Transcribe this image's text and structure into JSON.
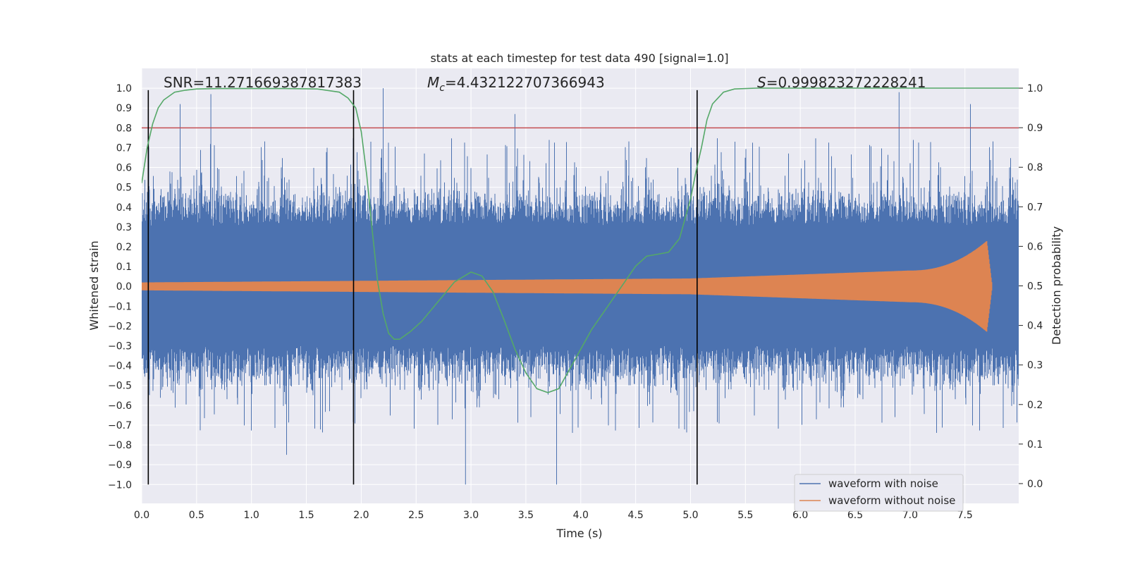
{
  "chart_data": {
    "type": "line",
    "title": "stats at each timestep for test data 490 [signal=1.0]",
    "xlabel": "Time (s)",
    "ylabel_left": "Whitened strain",
    "ylabel_right": "Detection probability",
    "xlim": [
      0.0,
      7.99
    ],
    "ylim_left": [
      -1.095,
      1.1
    ],
    "ylim_right": [
      -0.05,
      1.05
    ],
    "x_ticks": [
      "0.0",
      "0.5",
      "1.0",
      "1.5",
      "2.0",
      "2.5",
      "3.0",
      "3.5",
      "4.0",
      "4.5",
      "5.0",
      "5.5",
      "6.0",
      "6.5",
      "7.0",
      "7.5"
    ],
    "y_ticks_left": [
      "1.0",
      "0.9",
      "0.8",
      "0.7",
      "0.6",
      "0.5",
      "0.4",
      "0.3",
      "0.2",
      "0.1",
      "0.0",
      "−0.1",
      "−0.2",
      "−0.3",
      "−0.4",
      "−0.5",
      "−0.6",
      "−0.7",
      "−0.8",
      "−0.9",
      "−1.0"
    ],
    "y_ticks_right": [
      "1.0",
      "0.9",
      "0.8",
      "0.7",
      "0.6",
      "0.5",
      "0.4",
      "0.3",
      "0.2",
      "0.1",
      "0.0"
    ],
    "grid": true,
    "annotations": {
      "snr": "SNR=11.271669387817383",
      "mc_symbol": "M",
      "mc_sub": "c",
      "mc_value": "=4.432122707366943",
      "s_symbol": "S",
      "s_value": "=0.999823272228241"
    },
    "threshold_line": {
      "y": 0.8,
      "color": "#c44e52"
    },
    "vertical_lines": [
      0.06,
      1.93,
      5.06
    ],
    "legend": {
      "location": "lower-right",
      "entries": [
        "waveform with noise",
        "waveform without noise"
      ]
    },
    "series": [
      {
        "name": "waveform with noise",
        "color": "#4c72b0",
        "core_amplitude": 0.3,
        "spike_max": 0.95,
        "notable_peaks": [
          {
            "x": 0.35,
            "y": 0.92
          },
          {
            "x": 0.63,
            "y": 0.97
          },
          {
            "x": 2.2,
            "y": 1.0
          },
          {
            "x": 3.4,
            "y": 0.87
          },
          {
            "x": 6.9,
            "y": 0.98
          },
          {
            "x": 7.55,
            "y": 0.92
          },
          {
            "x": 2.95,
            "y": -1.0
          },
          {
            "x": 3.78,
            "y": -1.0
          },
          {
            "x": 1.32,
            "y": -0.85
          }
        ]
      },
      {
        "name": "waveform without noise",
        "color": "#dd8452",
        "description_points": [
          {
            "x": 0.0,
            "amplitude": 0.02
          },
          {
            "x": 5.0,
            "amplitude": 0.04
          },
          {
            "x": 7.0,
            "amplitude": 0.08
          },
          {
            "x": 7.7,
            "amplitude": 0.23
          },
          {
            "x": 7.75,
            "amplitude": 0.0
          }
        ]
      },
      {
        "name": "detection probability",
        "axis": "right",
        "color": "#55a868",
        "x": [
          0.0,
          0.05,
          0.1,
          0.15,
          0.2,
          0.3,
          0.4,
          0.5,
          0.7,
          1.0,
          1.3,
          1.6,
          1.8,
          1.88,
          1.95,
          2.0,
          2.05,
          2.1,
          2.15,
          2.2,
          2.25,
          2.3,
          2.35,
          2.45,
          2.55,
          2.7,
          2.85,
          3.0,
          3.1,
          3.2,
          3.3,
          3.4,
          3.5,
          3.6,
          3.7,
          3.8,
          3.9,
          4.0,
          4.1,
          4.2,
          4.3,
          4.4,
          4.5,
          4.6,
          4.7,
          4.8,
          4.9,
          5.0,
          5.05,
          5.1,
          5.15,
          5.2,
          5.3,
          5.4,
          5.6,
          6.0,
          7.0,
          7.99
        ],
        "y": [
          0.76,
          0.85,
          0.91,
          0.95,
          0.97,
          0.99,
          0.995,
          0.998,
          0.999,
          0.999,
          0.999,
          0.998,
          0.99,
          0.975,
          0.95,
          0.89,
          0.78,
          0.64,
          0.51,
          0.43,
          0.38,
          0.365,
          0.365,
          0.385,
          0.41,
          0.46,
          0.51,
          0.535,
          0.525,
          0.485,
          0.415,
          0.34,
          0.28,
          0.24,
          0.23,
          0.24,
          0.29,
          0.34,
          0.39,
          0.43,
          0.47,
          0.51,
          0.55,
          0.575,
          0.58,
          0.585,
          0.62,
          0.72,
          0.79,
          0.85,
          0.92,
          0.96,
          0.99,
          0.998,
          1.0,
          1.0,
          1.0,
          1.0
        ]
      }
    ]
  }
}
